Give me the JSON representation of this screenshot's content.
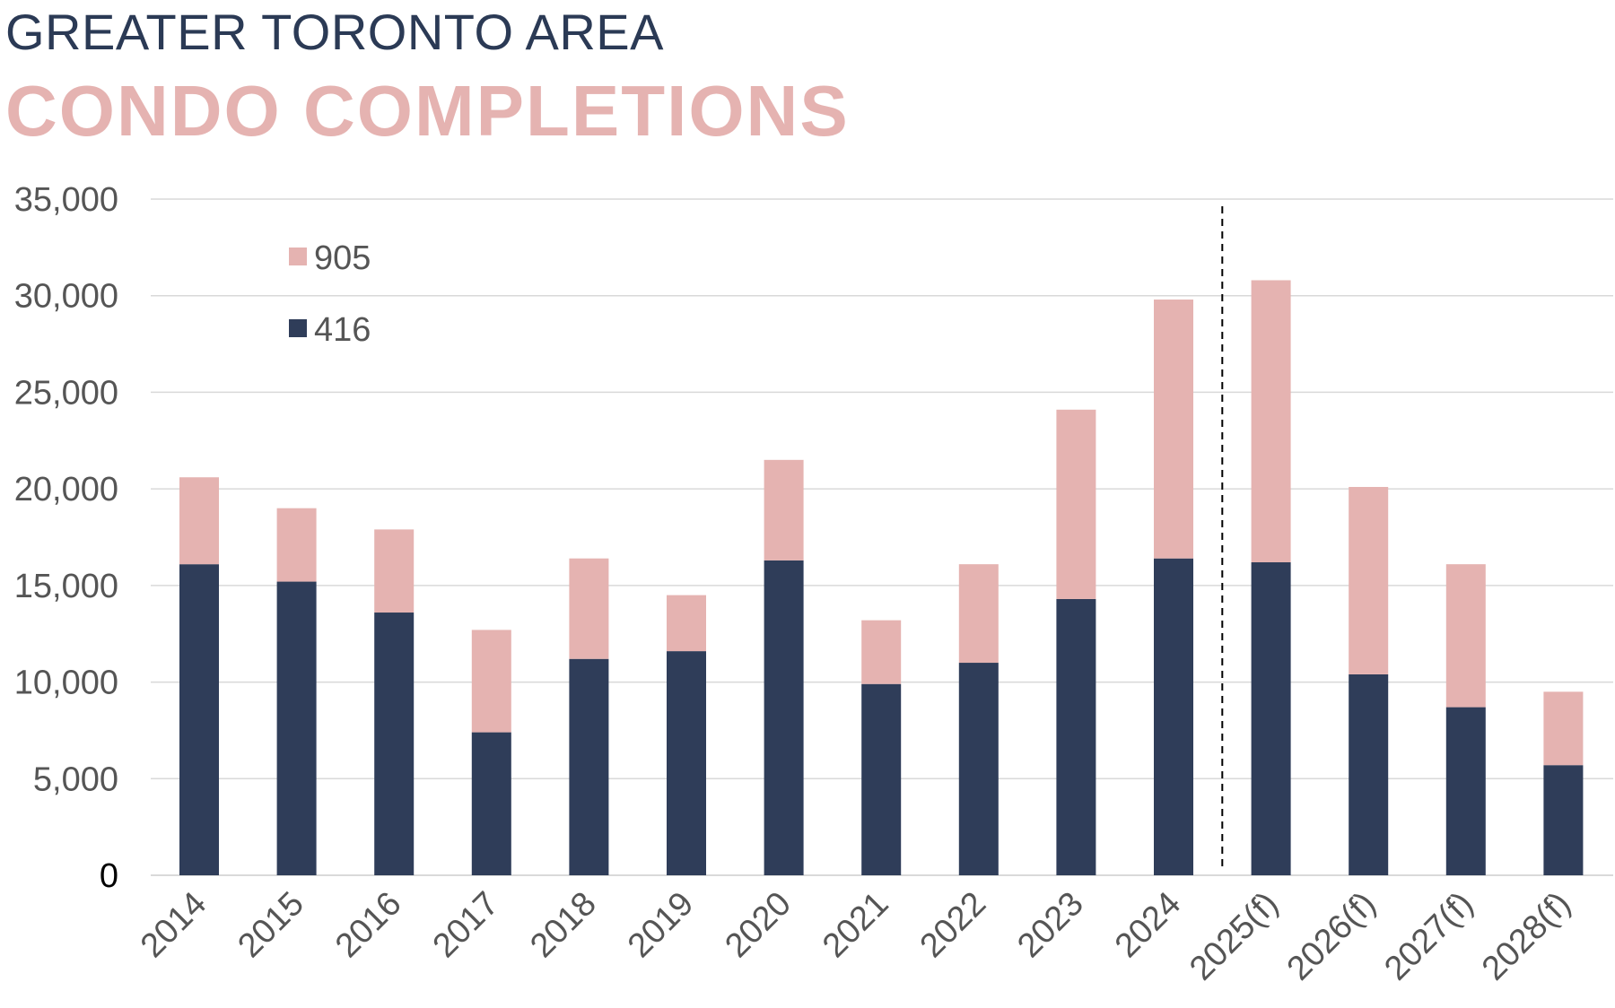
{
  "title": "GREATER TORONTO AREA",
  "subtitle": "CONDO COMPLETIONS",
  "colors": {
    "c905": "#e5b3b1",
    "c416": "#2f3d59",
    "title": "#2b3a55",
    "grid": "#d9d9d9",
    "axis_text": "#555555"
  },
  "chart_data": {
    "type": "bar",
    "stacked": true,
    "categories": [
      "2014",
      "2015",
      "2016",
      "2017",
      "2018",
      "2019",
      "2020",
      "2021",
      "2022",
      "2023",
      "2024",
      "2025(f)",
      "2026(f)",
      "2027(f)",
      "2028(f)"
    ],
    "series": [
      {
        "name": "416",
        "color": "#2f3d59",
        "values": [
          16100,
          15200,
          13600,
          7400,
          11200,
          11600,
          16300,
          9900,
          11000,
          14300,
          16400,
          16200,
          10400,
          8700,
          5700
        ]
      },
      {
        "name": "905",
        "color": "#e5b3b1",
        "values": [
          4500,
          3800,
          4300,
          5300,
          5200,
          2900,
          5200,
          3300,
          5100,
          9800,
          13400,
          14600,
          9700,
          7400,
          3800
        ]
      }
    ],
    "yticks": [
      "0",
      "5,000",
      "10,000",
      "15,000",
      "20,000",
      "25,000",
      "30,000",
      "35,000"
    ],
    "ylim": [
      0,
      35000
    ],
    "forecast_divider_after": "2024",
    "grid": true,
    "legend_position": "top-left",
    "legend_order": [
      "905",
      "416"
    ]
  }
}
